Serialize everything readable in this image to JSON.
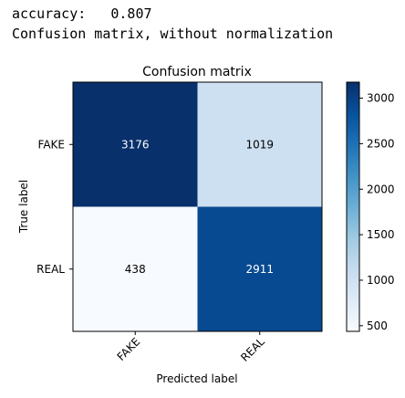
{
  "output": {
    "accuracy_label": "accuracy:",
    "accuracy_value": "0.807",
    "matrix_caption": "Confusion matrix, without normalization"
  },
  "chart_data": {
    "type": "heatmap",
    "title": "Confusion matrix",
    "xlabel": "Predicted label",
    "ylabel": "True label",
    "x_categories": [
      "FAKE",
      "REAL"
    ],
    "y_categories": [
      "FAKE",
      "REAL"
    ],
    "values": [
      [
        3176,
        1019
      ],
      [
        438,
        2911
      ]
    ],
    "colormap": "Blues",
    "color_range": [
      438,
      3176
    ],
    "colorbar_ticks": [
      500,
      1000,
      1500,
      2000,
      2500,
      3000
    ],
    "grid": false
  }
}
